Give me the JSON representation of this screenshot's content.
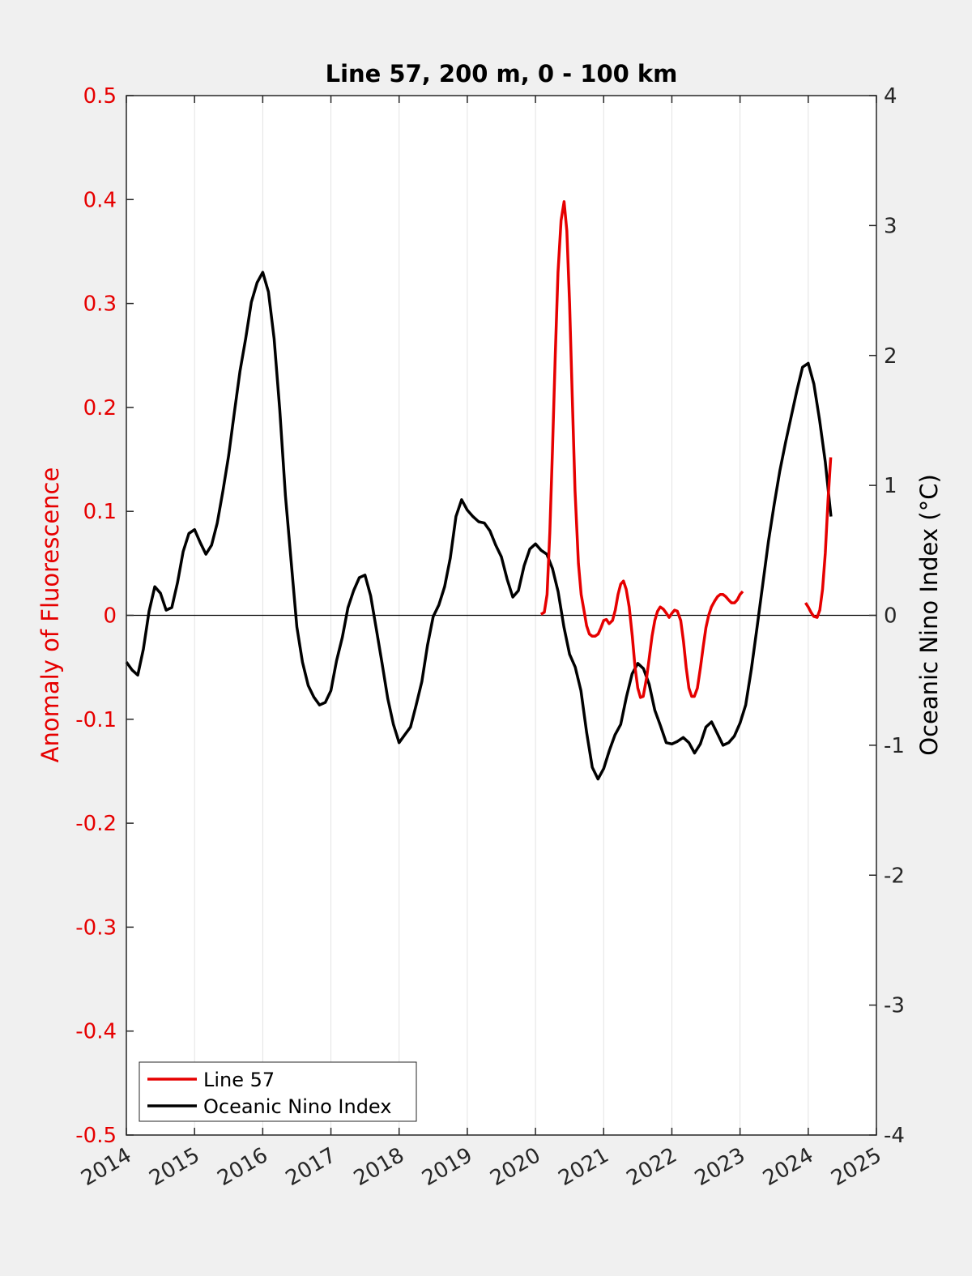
{
  "chart_data": {
    "type": "line",
    "title": "Line 57, 200 m, 0 - 100 km",
    "xlabel": "",
    "ylabel_left": "Anomaly of Fluorescence",
    "ylabel_right": "Oceanic Nino Index (°C)",
    "xlim": [
      2014,
      2025
    ],
    "ylim_left": [
      -0.5,
      0.5
    ],
    "ylim_right": [
      -4,
      4
    ],
    "x_ticks": [
      "2014",
      "2015",
      "2016",
      "2017",
      "2018",
      "2019",
      "2020",
      "2021",
      "2022",
      "2023",
      "2024",
      "2025"
    ],
    "y_ticks_left": [
      "-0.5",
      "-0.4",
      "-0.3",
      "-0.2",
      "-0.1",
      "0",
      "0.1",
      "0.2",
      "0.3",
      "0.4",
      "0.5"
    ],
    "y_ticks_right": [
      "-4",
      "-3",
      "-2",
      "-1",
      "0",
      "1",
      "2",
      "3",
      "4"
    ],
    "grid": "vertical",
    "zero_line": true,
    "legend_position": "bottom-left",
    "colors": {
      "line57": "#e60000",
      "oni": "#000000",
      "background": "#ffffff",
      "figure": "#f0f0f0"
    },
    "series": [
      {
        "name": "Line 57",
        "axis": "left",
        "color": "#e60000",
        "segments": [
          [
            [
              2020.08,
              0.001
            ],
            [
              2020.13,
              0.003
            ],
            [
              2020.17,
              0.02
            ],
            [
              2020.21,
              0.08
            ],
            [
              2020.25,
              0.16
            ],
            [
              2020.29,
              0.25
            ],
            [
              2020.33,
              0.33
            ],
            [
              2020.375,
              0.38
            ],
            [
              2020.42,
              0.398
            ],
            [
              2020.46,
              0.37
            ],
            [
              2020.5,
              0.3
            ],
            [
              2020.54,
              0.21
            ],
            [
              2020.58,
              0.12
            ],
            [
              2020.63,
              0.05
            ],
            [
              2020.67,
              0.02
            ],
            [
              2020.71,
              0.005
            ],
            [
              2020.75,
              -0.01
            ],
            [
              2020.79,
              -0.018
            ],
            [
              2020.83,
              -0.02
            ],
            [
              2020.875,
              -0.02
            ],
            [
              2020.92,
              -0.018
            ],
            [
              2020.96,
              -0.012
            ],
            [
              2021.0,
              -0.005
            ],
            [
              2021.04,
              -0.004
            ],
            [
              2021.08,
              -0.008
            ],
            [
              2021.13,
              -0.005
            ],
            [
              2021.17,
              0.005
            ],
            [
              2021.21,
              0.02
            ],
            [
              2021.25,
              0.03
            ],
            [
              2021.29,
              0.033
            ],
            [
              2021.33,
              0.025
            ],
            [
              2021.375,
              0.008
            ],
            [
              2021.42,
              -0.02
            ],
            [
              2021.46,
              -0.05
            ],
            [
              2021.5,
              -0.07
            ],
            [
              2021.54,
              -0.079
            ],
            [
              2021.58,
              -0.078
            ],
            [
              2021.63,
              -0.06
            ],
            [
              2021.67,
              -0.04
            ],
            [
              2021.71,
              -0.02
            ],
            [
              2021.75,
              -0.005
            ],
            [
              2021.79,
              0.004
            ],
            [
              2021.83,
              0.008
            ],
            [
              2021.875,
              0.006
            ],
            [
              2021.92,
              0.002
            ],
            [
              2021.96,
              -0.002
            ],
            [
              2022.0,
              0.002
            ],
            [
              2022.04,
              0.005
            ],
            [
              2022.08,
              0.004
            ],
            [
              2022.13,
              -0.005
            ],
            [
              2022.17,
              -0.025
            ],
            [
              2022.21,
              -0.05
            ],
            [
              2022.25,
              -0.07
            ],
            [
              2022.29,
              -0.078
            ],
            [
              2022.33,
              -0.078
            ],
            [
              2022.375,
              -0.07
            ],
            [
              2022.42,
              -0.05
            ],
            [
              2022.46,
              -0.03
            ],
            [
              2022.5,
              -0.012
            ],
            [
              2022.54,
              0.0
            ],
            [
              2022.58,
              0.008
            ],
            [
              2022.63,
              0.014
            ],
            [
              2022.67,
              0.018
            ],
            [
              2022.71,
              0.02
            ],
            [
              2022.75,
              0.02
            ],
            [
              2022.79,
              0.018
            ],
            [
              2022.83,
              0.015
            ],
            [
              2022.875,
              0.012
            ],
            [
              2022.92,
              0.012
            ],
            [
              2022.96,
              0.015
            ],
            [
              2023.0,
              0.02
            ],
            [
              2023.04,
              0.023
            ]
          ],
          [
            [
              2023.96,
              0.012
            ],
            [
              2024.0,
              0.008
            ],
            [
              2024.04,
              0.003
            ],
            [
              2024.08,
              -0.001
            ],
            [
              2024.13,
              -0.002
            ],
            [
              2024.17,
              0.005
            ],
            [
              2024.21,
              0.025
            ],
            [
              2024.25,
              0.06
            ],
            [
              2024.29,
              0.11
            ],
            [
              2024.33,
              0.152
            ]
          ]
        ]
      },
      {
        "name": "Oceanic Nino Index",
        "axis": "right",
        "color": "#000000",
        "x": [
          2014.0,
          2014.083,
          2014.167,
          2014.25,
          2014.333,
          2014.417,
          2014.5,
          2014.583,
          2014.667,
          2014.75,
          2014.833,
          2014.917,
          2015.0,
          2015.083,
          2015.167,
          2015.25,
          2015.333,
          2015.417,
          2015.5,
          2015.583,
          2015.667,
          2015.75,
          2015.833,
          2015.917,
          2016.0,
          2016.083,
          2016.167,
          2016.25,
          2016.333,
          2016.417,
          2016.5,
          2016.583,
          2016.667,
          2016.75,
          2016.833,
          2016.917,
          2017.0,
          2017.083,
          2017.167,
          2017.25,
          2017.333,
          2017.417,
          2017.5,
          2017.583,
          2017.667,
          2017.75,
          2017.833,
          2017.917,
          2018.0,
          2018.083,
          2018.167,
          2018.25,
          2018.333,
          2018.417,
          2018.5,
          2018.583,
          2018.667,
          2018.75,
          2018.833,
          2018.917,
          2019.0,
          2019.083,
          2019.167,
          2019.25,
          2019.333,
          2019.417,
          2019.5,
          2019.583,
          2019.667,
          2019.75,
          2019.833,
          2019.917,
          2020.0,
          2020.083,
          2020.167,
          2020.25,
          2020.333,
          2020.417,
          2020.5,
          2020.583,
          2020.667,
          2020.75,
          2020.833,
          2020.917,
          2021.0,
          2021.083,
          2021.167,
          2021.25,
          2021.333,
          2021.417,
          2021.5,
          2021.583,
          2021.667,
          2021.75,
          2021.833,
          2021.917,
          2022.0,
          2022.083,
          2022.167,
          2022.25,
          2022.333,
          2022.417,
          2022.5,
          2022.583,
          2022.667,
          2022.75,
          2022.833,
          2022.917,
          2023.0,
          2023.083,
          2023.167,
          2023.25,
          2023.333,
          2023.417,
          2023.5,
          2023.583,
          2023.667,
          2023.75,
          2023.833,
          2023.917,
          2024.0,
          2024.083,
          2024.167,
          2024.25,
          2024.333
        ],
        "values": [
          -0.36,
          -0.42,
          -0.46,
          -0.26,
          0.03,
          0.22,
          0.17,
          0.04,
          0.06,
          0.25,
          0.49,
          0.63,
          0.66,
          0.56,
          0.47,
          0.54,
          0.71,
          0.96,
          1.23,
          1.56,
          1.88,
          2.13,
          2.41,
          2.56,
          2.64,
          2.49,
          2.13,
          1.58,
          0.92,
          0.41,
          -0.09,
          -0.36,
          -0.54,
          -0.63,
          -0.69,
          -0.67,
          -0.58,
          -0.35,
          -0.17,
          0.06,
          0.19,
          0.29,
          0.31,
          0.15,
          -0.11,
          -0.37,
          -0.64,
          -0.84,
          -0.98,
          -0.92,
          -0.86,
          -0.69,
          -0.51,
          -0.23,
          -0.01,
          0.08,
          0.22,
          0.44,
          0.76,
          0.89,
          0.81,
          0.76,
          0.72,
          0.71,
          0.65,
          0.54,
          0.45,
          0.28,
          0.14,
          0.19,
          0.38,
          0.51,
          0.55,
          0.5,
          0.47,
          0.36,
          0.18,
          -0.09,
          -0.3,
          -0.4,
          -0.58,
          -0.9,
          -1.17,
          -1.26,
          -1.18,
          -1.04,
          -0.92,
          -0.84,
          -0.63,
          -0.45,
          -0.37,
          -0.41,
          -0.53,
          -0.73,
          -0.85,
          -0.98,
          -0.99,
          -0.97,
          -0.94,
          -0.98,
          -1.06,
          -0.99,
          -0.86,
          -0.82,
          -0.91,
          -1.0,
          -0.98,
          -0.93,
          -0.83,
          -0.69,
          -0.41,
          -0.09,
          0.24,
          0.57,
          0.85,
          1.11,
          1.33,
          1.53,
          1.73,
          1.91,
          1.94,
          1.78,
          1.5,
          1.18,
          0.76
        ]
      }
    ]
  }
}
